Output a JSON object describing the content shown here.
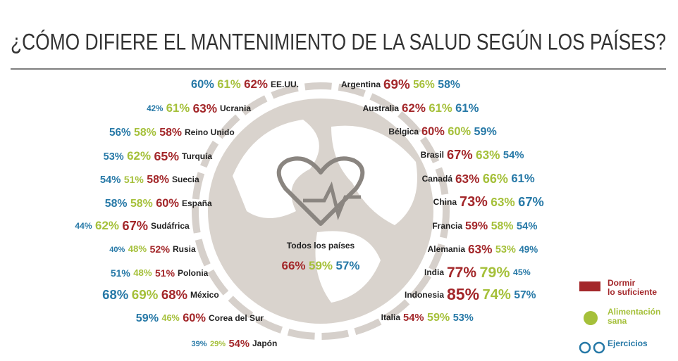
{
  "title": "¿CÓMO DIFIERE EL MANTENIMIENTO DE LA SALUD SEGÚN LOS PAÍSES?",
  "left": [
    {
      "name": "EE.UU.",
      "values": [
        "60%",
        "61%",
        "62%"
      ]
    },
    {
      "name": "Ucrania",
      "values": [
        "42%",
        "61%",
        "63%"
      ]
    },
    {
      "name": "Reino Unido",
      "values": [
        "56%",
        "58%",
        "58%"
      ]
    },
    {
      "name": "Turquía",
      "values": [
        "53%",
        "62%",
        "65%"
      ]
    },
    {
      "name": "Suecia",
      "values": [
        "54%",
        "51%",
        "58%"
      ]
    },
    {
      "name": "España",
      "values": [
        "58%",
        "58%",
        "60%"
      ]
    },
    {
      "name": "Sudáfrica",
      "values": [
        "44%",
        "62%",
        "67%"
      ]
    },
    {
      "name": "Rusia",
      "values": [
        "40%",
        "48%",
        "52%"
      ]
    },
    {
      "name": "Polonia",
      "values": [
        "51%",
        "48%",
        "51%"
      ]
    },
    {
      "name": "México",
      "values": [
        "68%",
        "69%",
        "68%"
      ]
    },
    {
      "name": "Corea del Sur",
      "values": [
        "59%",
        "46%",
        "60%"
      ]
    },
    {
      "name": "Japón",
      "values": [
        "39%",
        "29%",
        "54%"
      ]
    }
  ],
  "right": [
    {
      "name": "Argentina",
      "values": [
        "69%",
        "56%",
        "58%"
      ]
    },
    {
      "name": "Australia",
      "values": [
        "62%",
        "61%",
        "61%"
      ]
    },
    {
      "name": "Bélgica",
      "values": [
        "60%",
        "60%",
        "59%"
      ]
    },
    {
      "name": "Brasil",
      "values": [
        "67%",
        "63%",
        "54%"
      ]
    },
    {
      "name": "Canadá",
      "values": [
        "63%",
        "66%",
        "61%"
      ]
    },
    {
      "name": "China",
      "values": [
        "73%",
        "63%",
        "67%"
      ]
    },
    {
      "name": "Francia",
      "values": [
        "59%",
        "58%",
        "54%"
      ]
    },
    {
      "name": "Alemania",
      "values": [
        "63%",
        "53%",
        "49%"
      ]
    },
    {
      "name": "India",
      "values": [
        "77%",
        "79%",
        "45%"
      ]
    },
    {
      "name": "Indonesia",
      "values": [
        "85%",
        "74%",
        "57%"
      ]
    },
    {
      "name": "Italia",
      "values": [
        "54%",
        "59%",
        "53%"
      ]
    }
  ],
  "center": {
    "label": "Todos los países",
    "values": [
      "66%",
      "59%",
      "57%"
    ]
  },
  "legend": [
    "Dormir lo suficiente",
    "Alimentación sana",
    "Ejercicios"
  ]
}
